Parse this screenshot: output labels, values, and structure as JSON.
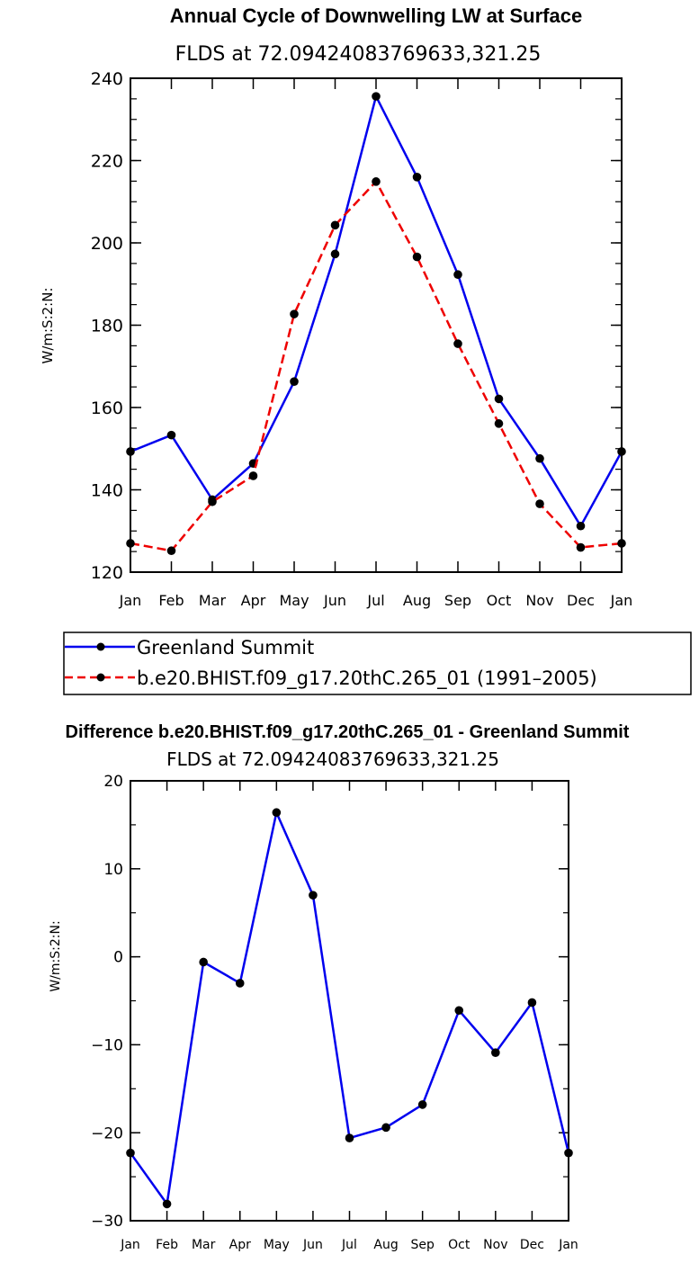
{
  "chart_data": [
    {
      "type": "line",
      "title": "Annual Cycle of Downwelling LW at Surface",
      "subtitle": "FLDS at 72.09424083769633,321.25",
      "xlabel": "",
      "ylabel": "W/m:S:2:N:",
      "categories": [
        "Jan",
        "Feb",
        "Mar",
        "Apr",
        "May",
        "Jun",
        "Jul",
        "Aug",
        "Sep",
        "Oct",
        "Nov",
        "Dec",
        "Jan"
      ],
      "ylim": [
        120,
        240
      ],
      "yticks": [
        "120",
        "140",
        "160",
        "180",
        "200",
        "220",
        "240"
      ],
      "legend_position": "below",
      "series": [
        {
          "name": "Greenland Summit",
          "color": "#0000ee",
          "style": "solid",
          "values": [
            149.3,
            153.3,
            137.6,
            146.4,
            166.3,
            197.3,
            235.6,
            216.0,
            192.3,
            162.1,
            147.6,
            131.2,
            149.3
          ]
        },
        {
          "name": "b.e20.BHIST.f09_g17.20thC.265_01 (1991–2005)",
          "color": "#ee0000",
          "style": "dashed",
          "values": [
            127.0,
            125.2,
            137.1,
            143.4,
            182.7,
            204.3,
            214.9,
            196.6,
            175.5,
            156.1,
            136.6,
            126.0,
            127.0
          ]
        }
      ]
    },
    {
      "type": "line",
      "title": "Difference b.e20.BHIST.f09_g17.20thC.265_01 - Greenland Summit",
      "subtitle": "FLDS at 72.09424083769633,321.25",
      "xlabel": "",
      "ylabel": "W/m:S:2:N:",
      "categories": [
        "Jan",
        "Feb",
        "Mar",
        "Apr",
        "May",
        "Jun",
        "Jul",
        "Aug",
        "Sep",
        "Oct",
        "Nov",
        "Dec",
        "Jan"
      ],
      "ylim": [
        -30,
        20
      ],
      "yticks": [
        "−30",
        "−20",
        "−10",
        "0",
        "10",
        "20"
      ],
      "series": [
        {
          "name": "Difference",
          "color": "#0000ee",
          "style": "solid",
          "values": [
            -22.3,
            -28.1,
            -0.6,
            -3.0,
            16.4,
            7.0,
            -20.6,
            -19.4,
            -16.8,
            -6.1,
            -10.9,
            -5.2,
            -22.3
          ]
        }
      ]
    }
  ]
}
